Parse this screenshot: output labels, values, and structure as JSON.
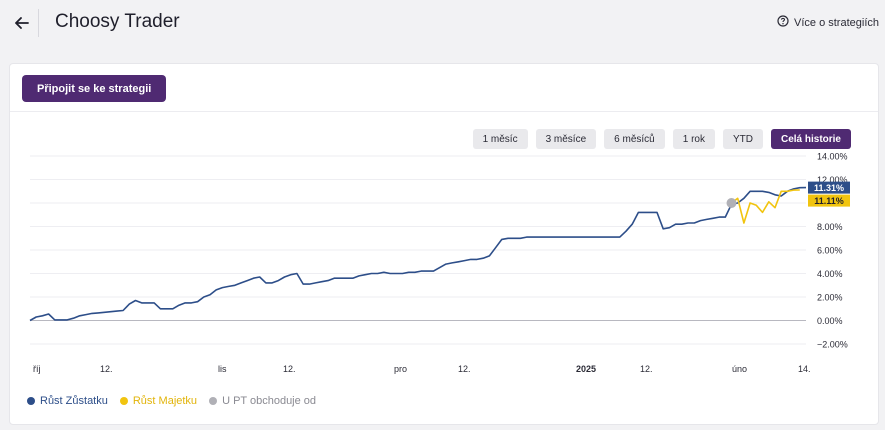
{
  "header": {
    "title": "Choosy Trader",
    "more_link": "Více o strategiích"
  },
  "card": {
    "join_button": "Připojit se ke strategii"
  },
  "range_buttons": [
    {
      "label": "1 měsíc",
      "active": false
    },
    {
      "label": "3 měsíce",
      "active": false
    },
    {
      "label": "6 měsíců",
      "active": false
    },
    {
      "label": "1 rok",
      "active": false
    },
    {
      "label": "YTD",
      "active": false
    },
    {
      "label": "Celá historie",
      "active": true
    }
  ],
  "legend": [
    {
      "label": "Růst Zůstatku",
      "color": "#2d4e89"
    },
    {
      "label": "Růst Majetku",
      "color": "#f1c40f"
    },
    {
      "label": "U PT obchoduje od",
      "color": "#b0b0b6"
    }
  ],
  "colors": {
    "accent": "#4f2a72",
    "balance": "#2d4e89",
    "equity": "#f1c40f",
    "marker": "#b0b0b6"
  },
  "chart_data": {
    "type": "line",
    "x_tick_labels": [
      "říj",
      "12.",
      "lis",
      "12.",
      "pro",
      "12.",
      "2025",
      "12.",
      "úno",
      "14."
    ],
    "y_tick_labels": [
      "14.00%",
      "12.00%",
      "10.00%",
      "8.00%",
      "6.00%",
      "4.00%",
      "2.00%",
      "0.00%",
      "−2.00%"
    ],
    "ylim": [
      -2,
      14
    ],
    "end_labels": {
      "balance": "11.31%",
      "equity": "11.11%"
    },
    "series": [
      {
        "name": "Růst Zůstatku",
        "values": [
          0.0,
          0.3,
          0.4,
          0.55,
          0.05,
          0.05,
          0.05,
          0.2,
          0.4,
          0.5,
          0.6,
          0.65,
          0.7,
          0.75,
          0.8,
          0.85,
          1.4,
          1.7,
          1.5,
          1.5,
          1.5,
          1.0,
          1.0,
          1.0,
          1.3,
          1.5,
          1.5,
          1.6,
          2.0,
          2.2,
          2.6,
          2.8,
          2.9,
          3.0,
          3.2,
          3.4,
          3.6,
          3.7,
          3.2,
          3.2,
          3.4,
          3.7,
          3.9,
          4.0,
          3.1,
          3.1,
          3.2,
          3.3,
          3.4,
          3.6,
          3.6,
          3.6,
          3.6,
          3.8,
          3.9,
          4.0,
          4.0,
          4.1,
          4.0,
          4.0,
          4.0,
          4.1,
          4.1,
          4.2,
          4.2,
          4.2,
          4.5,
          4.8,
          4.9,
          5.0,
          5.1,
          5.2,
          5.2,
          5.3,
          5.5,
          6.2,
          6.9,
          7.0,
          7.0,
          7.0,
          7.1,
          7.1,
          7.1,
          7.1,
          7.1,
          7.1,
          7.1,
          7.1,
          7.1,
          7.1,
          7.1,
          7.1,
          7.1,
          7.1,
          7.1,
          7.1,
          7.6,
          8.2,
          9.2,
          9.2,
          9.2,
          9.2,
          7.8,
          7.9,
          8.2,
          8.2,
          8.3,
          8.3,
          8.5,
          8.6,
          8.7,
          8.8,
          8.8,
          9.9,
          10.0,
          10.4,
          11.0,
          11.0,
          11.0,
          10.9,
          10.7,
          10.6,
          11.0,
          11.2,
          11.3,
          11.31
        ],
        "color": "#2d4e89"
      },
      {
        "name": "Růst Majetku",
        "values": [
          10.0,
          10.4,
          8.3,
          10.0,
          9.8,
          9.2,
          10.1,
          9.6,
          11.0,
          11.0,
          11.1,
          11.11
        ],
        "start_index": 113,
        "color": "#f1c40f"
      }
    ],
    "marker": {
      "name": "U PT obchoduje od",
      "index": 113,
      "value": 10.0
    }
  }
}
